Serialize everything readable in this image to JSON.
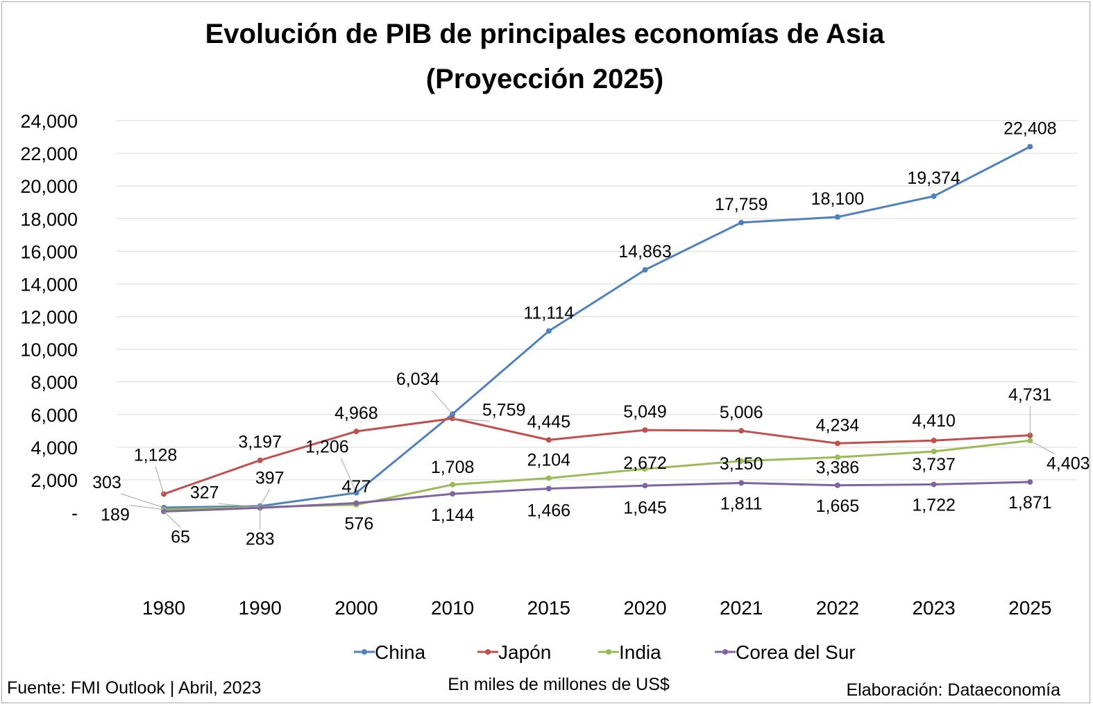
{
  "chart_data": {
    "type": "line",
    "title_line1": "Evolución de PIB de principales economías de Asia",
    "title_line2": "(Proyección 2025)",
    "categories": [
      "1980",
      "1990",
      "2000",
      "2010",
      "2015",
      "2020",
      "2021",
      "2022",
      "2023",
      "2025"
    ],
    "ylim": [
      0,
      24000
    ],
    "ytick_values": [
      0,
      2000,
      4000,
      6000,
      8000,
      10000,
      12000,
      14000,
      16000,
      18000,
      20000,
      22000,
      24000
    ],
    "ytick_labels": [
      "-",
      "2,000",
      "4,000",
      "6,000",
      "8,000",
      "10,000",
      "12,000",
      "14,000",
      "16,000",
      "18,000",
      "20,000",
      "22,000",
      "24,000"
    ],
    "grid": true,
    "legend_position": "bottom",
    "series": [
      {
        "name": "China",
        "color": "#4f81bd",
        "values": [
          303,
          397,
          1206,
          6034,
          11114,
          14863,
          17759,
          18100,
          19374,
          22408
        ],
        "labels": [
          "303",
          "397",
          "1,206",
          "6,034",
          "11,114",
          "14,863",
          "17,759",
          "18,100",
          "19,374",
          "22,408"
        ]
      },
      {
        "name": "Japón",
        "color": "#c0504d",
        "values": [
          1128,
          3197,
          4968,
          5759,
          4445,
          5049,
          5006,
          4234,
          4410,
          4731
        ],
        "labels": [
          "1,128",
          "3,197",
          "4,968",
          "5,759",
          "4,445",
          "5,049",
          "5,006",
          "4,234",
          "4,410",
          "4,731"
        ]
      },
      {
        "name": "India",
        "color": "#9bbb59",
        "values": [
          189,
          327,
          477,
          1708,
          2104,
          2672,
          3150,
          3386,
          3737,
          4403
        ],
        "labels": [
          "189",
          "327",
          "477",
          "1,708",
          "2,104",
          "2,672",
          "3,150",
          "3,386",
          "3,737",
          "4,403"
        ]
      },
      {
        "name": "Corea del Sur",
        "color": "#8064a2",
        "values": [
          65,
          283,
          576,
          1144,
          1466,
          1645,
          1811,
          1665,
          1722,
          1871
        ],
        "labels": [
          "65",
          "283",
          "576",
          "1,144",
          "1,466",
          "1,645",
          "1,811",
          "1,665",
          "1,722",
          "1,871"
        ]
      }
    ]
  },
  "footer": {
    "source": "Fuente: FMI Outlook | Abril, 2023",
    "units": "En miles de millones de US$",
    "credit": "Elaboración: Dataeconomía"
  }
}
